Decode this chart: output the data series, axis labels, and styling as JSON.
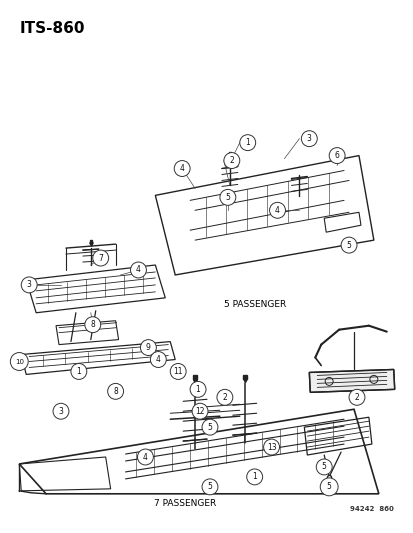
{
  "title": "ITS-860",
  "background_color": "#ffffff",
  "text_color": "#000000",
  "label_5pass": "5 PASSENGER",
  "label_7pass": "7 PASSENGER",
  "watermark": "94242  860",
  "figsize": [
    4.14,
    5.33
  ],
  "dpi": 100,
  "line_color": "#222222",
  "lw": 0.8
}
